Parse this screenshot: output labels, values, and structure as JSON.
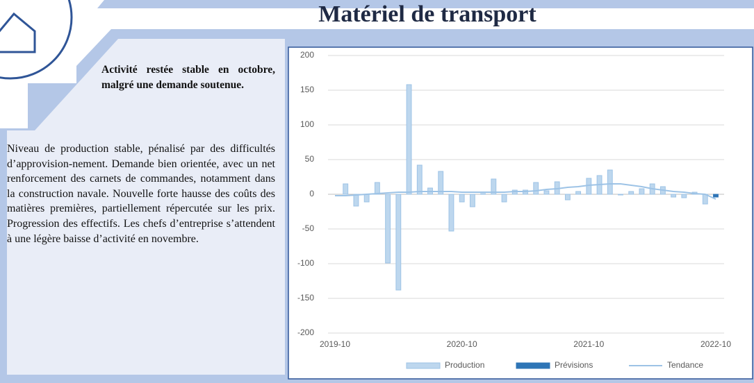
{
  "header": {
    "title": "Matériel de transport"
  },
  "text": {
    "headline": "Activité restée stable en octobre, malgré une demande soutenue.",
    "body": "Niveau de production stable, pénalisé par des difficultés d’approvision-nement. Demande bien orientée, avec un net renforcement des carnets de commandes, notamment dans la construction navale. Nouvelle forte hausse des coûts des matières premières, partiellement répercutée sur les prix. Progression des effectifs. Les chefs d’entreprise s’attendent à une légère baisse d’activité en novembre."
  },
  "chart_data": {
    "type": "bar",
    "categories": [
      "2019-10",
      null,
      null,
      null,
      null,
      null,
      null,
      null,
      null,
      null,
      null,
      null,
      "2020-10",
      null,
      null,
      null,
      null,
      null,
      null,
      null,
      null,
      null,
      null,
      null,
      "2021-10",
      null,
      null,
      null,
      null,
      null,
      null,
      null,
      null,
      null,
      null,
      null,
      "2022-10"
    ],
    "series": [
      {
        "name": "Production",
        "type": "bar",
        "color": "#bdd7ee",
        "values": [
          null,
          15,
          -17,
          -11,
          17,
          -99,
          -138,
          158,
          42,
          9,
          33,
          -53,
          -11,
          -18,
          1,
          22,
          -11,
          6,
          6,
          17,
          5,
          18,
          -8,
          4,
          23,
          27,
          35,
          -1,
          4,
          8,
          15,
          11,
          -4,
          -5,
          3,
          -14,
          null
        ]
      },
      {
        "name": "Prévisions",
        "type": "bar",
        "color": "#2e75b6",
        "values": [
          null,
          null,
          null,
          null,
          null,
          null,
          null,
          null,
          null,
          null,
          null,
          null,
          null,
          null,
          null,
          null,
          null,
          null,
          null,
          null,
          null,
          null,
          null,
          null,
          null,
          null,
          null,
          null,
          null,
          null,
          null,
          null,
          null,
          null,
          null,
          null,
          -4
        ]
      },
      {
        "name": "Tendance",
        "type": "line",
        "color": "#9dc3e6",
        "values": [
          -2,
          -2,
          -1,
          0,
          1,
          2,
          3,
          3,
          4,
          4,
          4,
          4,
          3,
          3,
          3,
          3,
          3,
          4,
          4,
          5,
          7,
          8,
          10,
          11,
          13,
          14,
          15,
          15,
          13,
          11,
          8,
          6,
          4,
          3,
          1,
          0,
          -7
        ]
      }
    ],
    "ylim": [
      -200,
      200
    ],
    "yticks": [
      -200,
      -150,
      -100,
      -50,
      0,
      50,
      100,
      150,
      200
    ],
    "grid": true,
    "legend": "bottom"
  }
}
